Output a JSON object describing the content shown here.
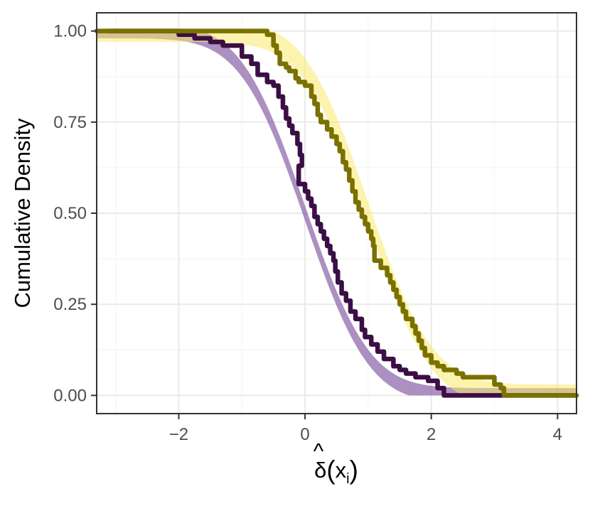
{
  "chart_data": {
    "type": "line",
    "title": "",
    "xlabel": "δ̂(x_i)",
    "xlabel_parts": {
      "base": "δ",
      "hat": "^",
      "open": "(",
      "var": "x",
      "sub": "i",
      "close": ")"
    },
    "ylabel": "Cumulative Density",
    "xlim": [
      -3.3,
      4.3
    ],
    "ylim": [
      -0.05,
      1.05
    ],
    "x_ticks": [
      -2,
      0,
      2,
      4
    ],
    "x_tick_labels": [
      "−2",
      "0",
      "2",
      "4"
    ],
    "y_ticks": [
      0,
      0.25,
      0.5,
      0.75,
      1.0
    ],
    "y_tick_labels": [
      "0.00",
      "0.25",
      "0.50",
      "0.75",
      "1.00"
    ],
    "grid": true,
    "theme": {
      "panel_border": "#333333",
      "grid_major": "#ebebeb",
      "grid_minor": "#f5f5f5"
    },
    "series": [
      {
        "kind": "empirical-step",
        "color": "#3b0f45",
        "band": {
          "mean": 0.0,
          "sd": 0.8,
          "halfwidth": 0.02,
          "color": "#7e55a0",
          "opacity": 0.65
        },
        "points": [
          [
            -3.1,
            1.0
          ],
          [
            -2.25,
            1.0
          ],
          [
            -2.0,
            0.99
          ],
          [
            -1.75,
            0.98
          ],
          [
            -1.5,
            0.97
          ],
          [
            -1.3,
            0.96
          ],
          [
            -1.05,
            0.96
          ],
          [
            -1.0,
            0.93
          ],
          [
            -0.85,
            0.91
          ],
          [
            -0.75,
            0.88
          ],
          [
            -0.6,
            0.86
          ],
          [
            -0.5,
            0.85
          ],
          [
            -0.42,
            0.82
          ],
          [
            -0.35,
            0.79
          ],
          [
            -0.3,
            0.76
          ],
          [
            -0.25,
            0.74
          ],
          [
            -0.2,
            0.72
          ],
          [
            -0.12,
            0.69
          ],
          [
            -0.08,
            0.66
          ],
          [
            -0.05,
            0.63
          ],
          [
            -0.1,
            0.63
          ],
          [
            -0.1,
            0.58
          ],
          [
            0.0,
            0.56
          ],
          [
            0.05,
            0.54
          ],
          [
            0.1,
            0.52
          ],
          [
            0.15,
            0.49
          ],
          [
            0.2,
            0.47
          ],
          [
            0.25,
            0.45
          ],
          [
            0.3,
            0.43
          ],
          [
            0.35,
            0.41
          ],
          [
            0.4,
            0.39
          ],
          [
            0.45,
            0.37
          ],
          [
            0.48,
            0.34
          ],
          [
            0.52,
            0.31
          ],
          [
            0.58,
            0.28
          ],
          [
            0.65,
            0.26
          ],
          [
            0.72,
            0.23
          ],
          [
            0.8,
            0.21
          ],
          [
            0.9,
            0.18
          ],
          [
            0.95,
            0.16
          ],
          [
            1.05,
            0.14
          ],
          [
            1.15,
            0.12
          ],
          [
            1.25,
            0.1
          ],
          [
            1.4,
            0.08
          ],
          [
            1.5,
            0.07
          ],
          [
            1.6,
            0.06
          ],
          [
            1.75,
            0.05
          ],
          [
            1.95,
            0.04
          ],
          [
            2.1,
            0.02
          ],
          [
            2.2,
            0.0
          ],
          [
            3.0,
            0.0
          ],
          [
            4.3,
            0.0
          ]
        ]
      },
      {
        "kind": "empirical-step",
        "color": "#7a7100",
        "band": {
          "mean": 1.0,
          "sd": 0.8,
          "halfwidth": 0.03,
          "color": "#fae96b",
          "opacity": 0.55
        },
        "points": [
          [
            -3.3,
            1.0
          ],
          [
            -1.05,
            1.0
          ],
          [
            -0.6,
            0.99
          ],
          [
            -0.5,
            0.96
          ],
          [
            -0.45,
            0.94
          ],
          [
            -0.4,
            0.91
          ],
          [
            -0.3,
            0.9
          ],
          [
            -0.25,
            0.89
          ],
          [
            -0.15,
            0.87
          ],
          [
            -0.1,
            0.86
          ],
          [
            0.0,
            0.85
          ],
          [
            0.1,
            0.82
          ],
          [
            0.15,
            0.8
          ],
          [
            0.2,
            0.77
          ],
          [
            0.25,
            0.75
          ],
          [
            0.35,
            0.73
          ],
          [
            0.42,
            0.71
          ],
          [
            0.5,
            0.69
          ],
          [
            0.55,
            0.67
          ],
          [
            0.6,
            0.64
          ],
          [
            0.65,
            0.62
          ],
          [
            0.7,
            0.59
          ],
          [
            0.75,
            0.56
          ],
          [
            0.8,
            0.53
          ],
          [
            0.85,
            0.51
          ],
          [
            0.9,
            0.49
          ],
          [
            0.95,
            0.47
          ],
          [
            1.0,
            0.45
          ],
          [
            1.05,
            0.43
          ],
          [
            1.08,
            0.41
          ],
          [
            1.1,
            0.39
          ],
          [
            1.1,
            0.37
          ],
          [
            1.2,
            0.35
          ],
          [
            1.3,
            0.33
          ],
          [
            1.35,
            0.31
          ],
          [
            1.4,
            0.29
          ],
          [
            1.45,
            0.27
          ],
          [
            1.5,
            0.25
          ],
          [
            1.55,
            0.23
          ],
          [
            1.6,
            0.21
          ],
          [
            1.7,
            0.19
          ],
          [
            1.75,
            0.17
          ],
          [
            1.8,
            0.15
          ],
          [
            1.85,
            0.13
          ],
          [
            1.9,
            0.11
          ],
          [
            2.0,
            0.09
          ],
          [
            2.1,
            0.08
          ],
          [
            2.2,
            0.07
          ],
          [
            2.4,
            0.06
          ],
          [
            2.5,
            0.05
          ],
          [
            2.9,
            0.05
          ],
          [
            3.0,
            0.03
          ],
          [
            3.1,
            0.02
          ],
          [
            3.15,
            0.0
          ],
          [
            4.3,
            0.0
          ]
        ]
      }
    ]
  }
}
